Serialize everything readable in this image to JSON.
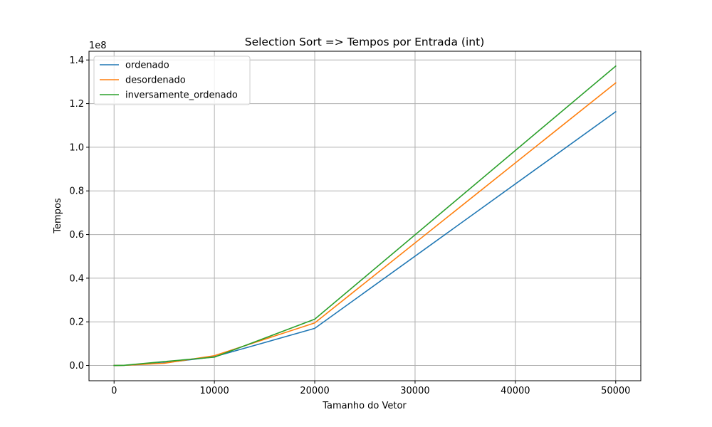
{
  "chart_data": {
    "type": "line",
    "title": "Selection Sort => Tempos por Entrada (int)",
    "xlabel": "Tamanho do Vetor",
    "ylabel": "Tempos",
    "y_offset_label": "1e8",
    "y_scale_factor": 100000000,
    "xlim": [
      -2500,
      52500
    ],
    "ylim": [
      -0.07,
      1.44
    ],
    "x_ticks": [
      0,
      10000,
      20000,
      30000,
      40000,
      50000
    ],
    "x_tick_labels": [
      "0",
      "10000",
      "20000",
      "30000",
      "40000",
      "50000"
    ],
    "y_ticks": [
      0.0,
      0.2,
      0.4,
      0.6,
      0.8,
      1.0,
      1.2,
      1.4
    ],
    "y_tick_labels": [
      "0.0",
      "0.2",
      "0.4",
      "0.6",
      "0.8",
      "1.0",
      "1.2",
      "1.4"
    ],
    "grid": true,
    "legend_position": "top-left",
    "x": [
      0,
      1000,
      5000,
      10000,
      20000,
      50000
    ],
    "series": [
      {
        "name": "ordenado",
        "color": "#1f77b4",
        "values": [
          0.0,
          0.0005,
          0.012,
          0.04,
          0.17,
          1.163
        ]
      },
      {
        "name": "desordenado",
        "color": "#ff7f0e",
        "values": [
          0.0,
          0.0005,
          0.01,
          0.045,
          0.195,
          1.295
        ]
      },
      {
        "name": "inversamente_ordenado",
        "color": "#2ca02c",
        "values": [
          0.0,
          0.0006,
          0.018,
          0.038,
          0.212,
          1.372
        ]
      }
    ]
  }
}
